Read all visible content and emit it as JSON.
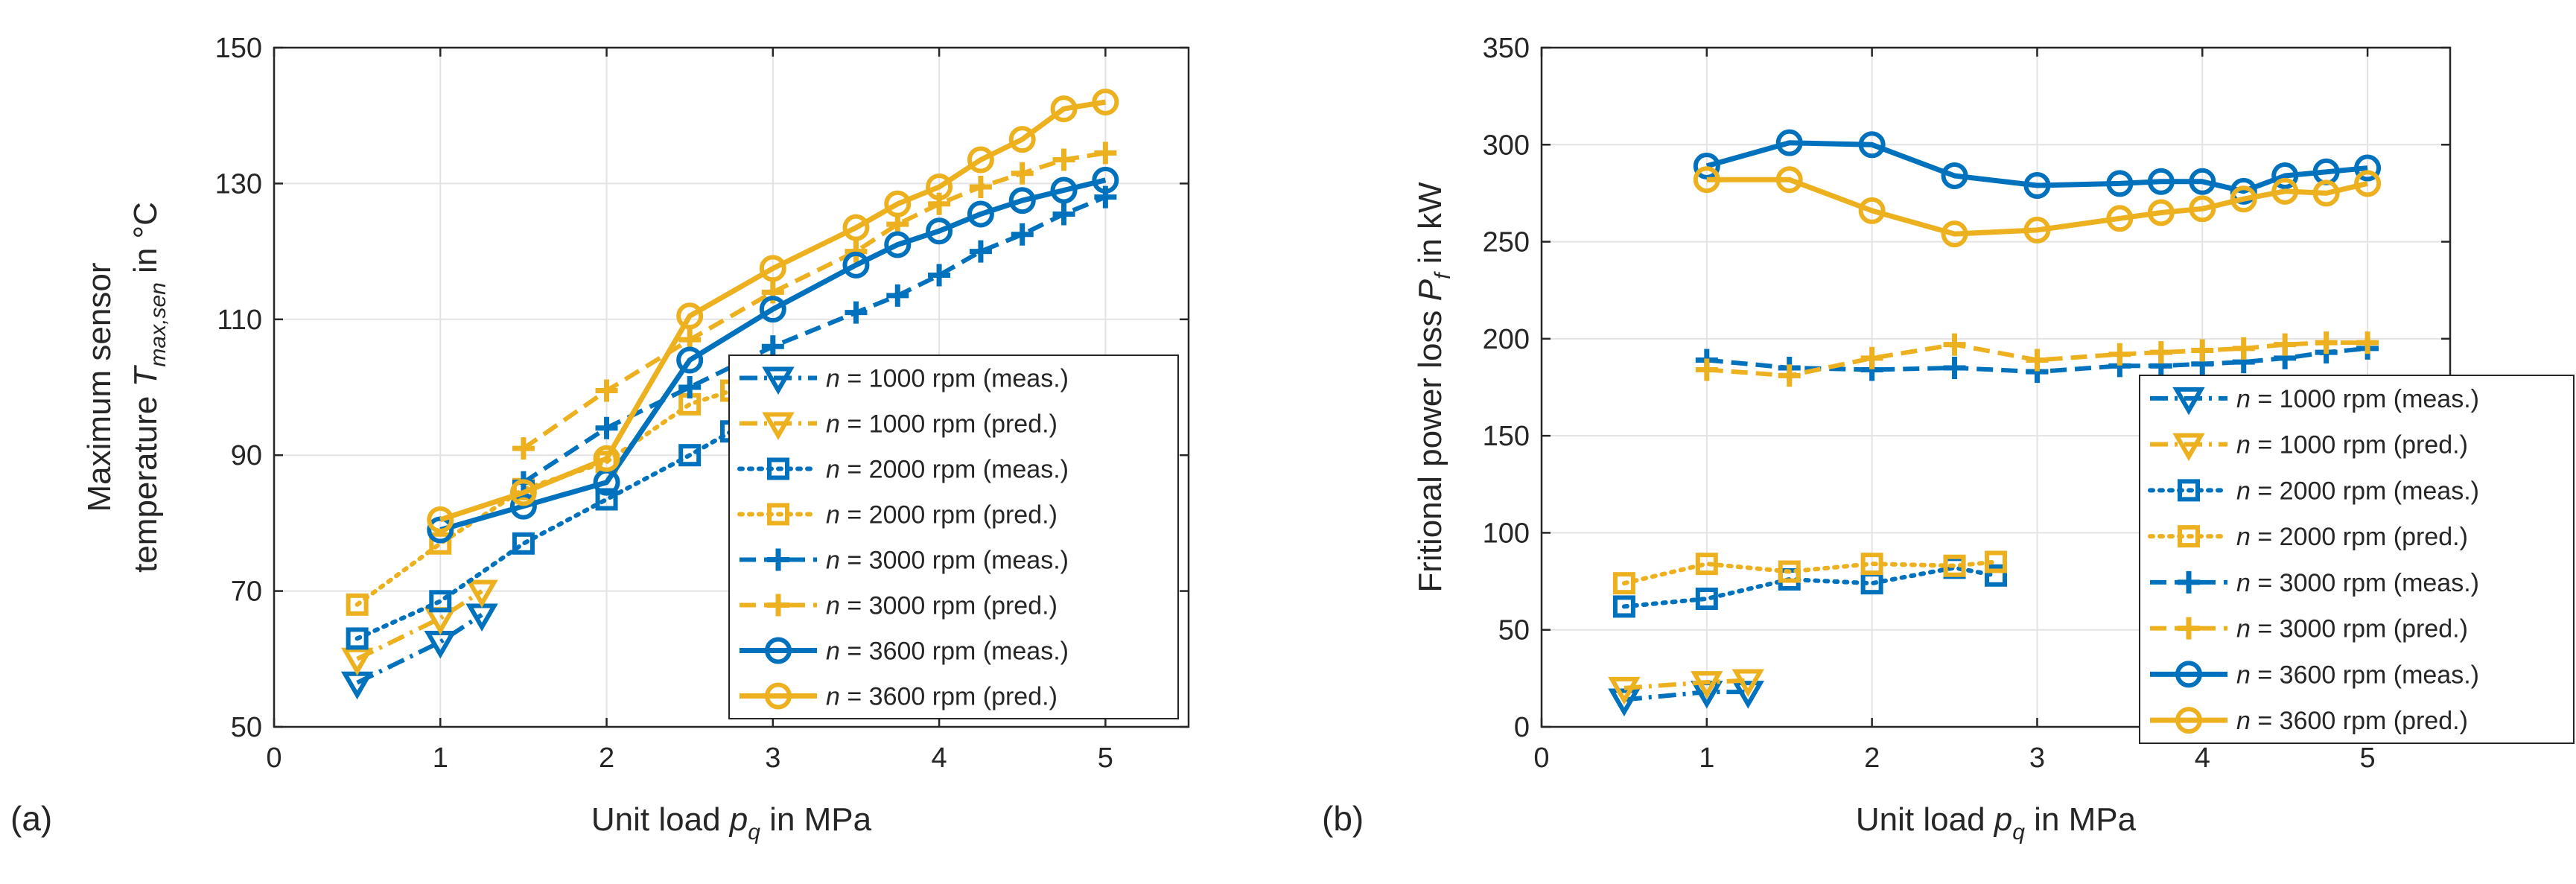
{
  "chart_data": [
    {
      "type": "line",
      "panel_label": "(a)",
      "xlabel": {
        "main": "Unit load ",
        "sym": "p",
        "sub": "q",
        "tail": " in MPa"
      },
      "ylabel": {
        "line1": "Maximum sensor",
        "line2_main": "temperature ",
        "sym": "T",
        "sub": "max,sen",
        "tail": " in °C"
      },
      "xlim": [
        0,
        5.5
      ],
      "ylim": [
        50,
        150
      ],
      "xticks": [
        0,
        1,
        2,
        3,
        4,
        5
      ],
      "yticks": [
        50,
        70,
        90,
        110,
        130,
        150
      ],
      "xtick_labels": [
        "0",
        "1",
        "2",
        "3",
        "4",
        "5"
      ],
      "ytick_labels": [
        "50",
        "70",
        "90",
        "110",
        "130",
        "150"
      ],
      "grid": true,
      "legend_position": "lower-right",
      "series": [
        {
          "name": "n = 1000 rpm (meas.)",
          "prefix": "n",
          "suffix": " = 1000 rpm (meas.)",
          "color": "#0072BD",
          "dash": "dashdot",
          "marker": "triangle-down",
          "x": [
            0.5,
            1,
            1.25
          ],
          "y": [
            56.5,
            62.5,
            66.5
          ]
        },
        {
          "name": "n = 1000 rpm (pred.)",
          "prefix": "n",
          "suffix": " = 1000 rpm (pred.)",
          "color": "#EDB120",
          "dash": "dashdot",
          "marker": "triangle-down",
          "x": [
            0.5,
            1,
            1.25
          ],
          "y": [
            60,
            66,
            70
          ]
        },
        {
          "name": "n = 2000 rpm (meas.)",
          "prefix": "n",
          "suffix": " = 2000 rpm (meas.)",
          "color": "#0072BD",
          "dash": "dotted",
          "marker": "square",
          "x": [
            0.5,
            1,
            1.5,
            2,
            2.5,
            2.75
          ],
          "y": [
            63,
            68.5,
            77,
            83.5,
            90,
            93.5
          ]
        },
        {
          "name": "n = 2000 rpm (pred.)",
          "prefix": "n",
          "suffix": " = 2000 rpm (pred.)",
          "color": "#EDB120",
          "dash": "dotted",
          "marker": "square",
          "x": [
            0.5,
            1,
            1.5,
            2,
            2.5,
            2.75
          ],
          "y": [
            68,
            77,
            85,
            89,
            97.5,
            99.5
          ]
        },
        {
          "name": "n = 3000 rpm (meas.)",
          "prefix": "n",
          "suffix": " = 3000 rpm (meas.)",
          "color": "#0072BD",
          "dash": "dashed",
          "marker": "plus",
          "x": [
            1.5,
            2,
            2.5,
            3,
            3.5,
            3.75,
            4,
            4.25,
            4.5,
            4.75,
            5
          ],
          "y": [
            86,
            94,
            100,
            106,
            111,
            113.5,
            116.5,
            120,
            122.5,
            125.5,
            128
          ]
        },
        {
          "name": "n = 3000 rpm (pred.)",
          "prefix": "n",
          "suffix": " = 3000 rpm (pred.)",
          "color": "#EDB120",
          "dash": "dashed",
          "marker": "plus",
          "x": [
            1.5,
            2,
            2.5,
            3,
            3.5,
            3.75,
            4,
            4.25,
            4.5,
            4.75,
            5
          ],
          "y": [
            91,
            99.5,
            107,
            114,
            120,
            124,
            127,
            129.5,
            131.5,
            133.5,
            134.5
          ]
        },
        {
          "name": "n = 3600 rpm (meas.)",
          "prefix": "n",
          "suffix": " = 3600 rpm (meas.)",
          "color": "#0072BD",
          "dash": "solid",
          "marker": "circle",
          "x": [
            1,
            1.5,
            2,
            2.5,
            3,
            3.5,
            3.75,
            4,
            4.25,
            4.5,
            4.75,
            5
          ],
          "y": [
            79,
            82.5,
            86,
            104,
            111.5,
            118,
            121,
            123,
            125.5,
            127.5,
            129,
            130.5
          ]
        },
        {
          "name": "n = 3600 rpm (pred.)",
          "prefix": "n",
          "suffix": " = 3600 rpm (pred.)",
          "color": "#EDB120",
          "dash": "solid",
          "marker": "circle",
          "x": [
            1,
            1.5,
            2,
            2.5,
            3,
            3.5,
            3.75,
            4,
            4.25,
            4.5,
            4.75,
            5
          ],
          "y": [
            80.5,
            84.5,
            89.5,
            110.5,
            117.5,
            123.5,
            127,
            129.5,
            133.5,
            136.5,
            141,
            142
          ]
        }
      ]
    },
    {
      "type": "line",
      "panel_label": "(b)",
      "xlabel": {
        "main": "Unit load ",
        "sym": "p",
        "sub": "q",
        "tail": " in MPa"
      },
      "ylabel": {
        "main": "Fritional power loss ",
        "sym": "P",
        "sub": "f",
        "tail": " in kW"
      },
      "xlim": [
        0,
        5.5
      ],
      "ylim": [
        0,
        350
      ],
      "xticks": [
        0,
        1,
        2,
        3,
        4,
        5
      ],
      "yticks": [
        0,
        50,
        100,
        150,
        200,
        250,
        300,
        350
      ],
      "xtick_labels": [
        "0",
        "1",
        "2",
        "3",
        "4",
        "5"
      ],
      "ytick_labels": [
        "0",
        "50",
        "100",
        "150",
        "200",
        "250",
        "300",
        "350"
      ],
      "grid": true,
      "legend_position": "lower-right",
      "series": [
        {
          "name": "n = 1000 rpm (meas.)",
          "prefix": "n",
          "suffix": " = 1000 rpm (meas.)",
          "color": "#0072BD",
          "dash": "dashdot",
          "marker": "triangle-down",
          "x": [
            0.5,
            1,
            1.25
          ],
          "y": [
            14,
            18,
            18
          ]
        },
        {
          "name": "n = 1000 rpm (pred.)",
          "prefix": "n",
          "suffix": " = 1000 rpm (pred.)",
          "color": "#EDB120",
          "dash": "dashdot",
          "marker": "triangle-down",
          "x": [
            0.5,
            1,
            1.25
          ],
          "y": [
            20,
            23,
            24
          ]
        },
        {
          "name": "n = 2000 rpm (meas.)",
          "prefix": "n",
          "suffix": " = 2000 rpm (meas.)",
          "color": "#0072BD",
          "dash": "dotted",
          "marker": "square",
          "x": [
            0.5,
            1,
            1.5,
            2,
            2.5,
            2.75
          ],
          "y": [
            62,
            66,
            76,
            74,
            82,
            78
          ]
        },
        {
          "name": "n = 2000 rpm (pred.)",
          "prefix": "n",
          "suffix": " = 2000 rpm (pred.)",
          "color": "#EDB120",
          "dash": "dotted",
          "marker": "square",
          "x": [
            0.5,
            1,
            1.5,
            2,
            2.5,
            2.75
          ],
          "y": [
            74,
            84,
            80,
            84,
            83,
            85
          ]
        },
        {
          "name": "n = 3000 rpm (meas.)",
          "prefix": "n",
          "suffix": " = 3000 rpm (meas.)",
          "color": "#0072BD",
          "dash": "dashed",
          "marker": "plus",
          "x": [
            1,
            1.5,
            2,
            2.5,
            3,
            3.5,
            3.75,
            4,
            4.25,
            4.5,
            4.75,
            5
          ],
          "y": [
            189,
            185,
            184,
            185,
            183,
            186,
            186,
            187,
            188,
            190,
            193,
            195
          ]
        },
        {
          "name": "n = 3000 rpm (pred.)",
          "prefix": "n",
          "suffix": " = 3000 rpm (pred.)",
          "color": "#EDB120",
          "dash": "dashed",
          "marker": "plus",
          "x": [
            1,
            1.5,
            2,
            2.5,
            3,
            3.5,
            3.75,
            4,
            4.25,
            4.5,
            4.75,
            5
          ],
          "y": [
            184,
            181,
            190,
            197,
            189,
            192,
            193,
            194,
            195,
            197,
            198,
            198
          ]
        },
        {
          "name": "n = 3600 rpm (meas.)",
          "prefix": "n",
          "suffix": " = 3600 rpm (meas.)",
          "color": "#0072BD",
          "dash": "solid",
          "marker": "circle",
          "x": [
            1,
            1.5,
            2,
            2.5,
            3,
            3.5,
            3.75,
            4,
            4.25,
            4.5,
            4.75,
            5
          ],
          "y": [
            289,
            301,
            300,
            284,
            279,
            280,
            281,
            281,
            276,
            284,
            286,
            288
          ]
        },
        {
          "name": "n = 3600 rpm (pred.)",
          "prefix": "n",
          "suffix": " = 3600 rpm (pred.)",
          "color": "#EDB120",
          "dash": "solid",
          "marker": "circle",
          "x": [
            1,
            1.5,
            2,
            2.5,
            3,
            3.5,
            3.75,
            4,
            4.25,
            4.5,
            4.75,
            5
          ],
          "y": [
            282,
            282,
            266,
            254,
            256,
            262,
            265,
            267,
            272,
            276,
            275,
            280
          ]
        }
      ]
    }
  ]
}
